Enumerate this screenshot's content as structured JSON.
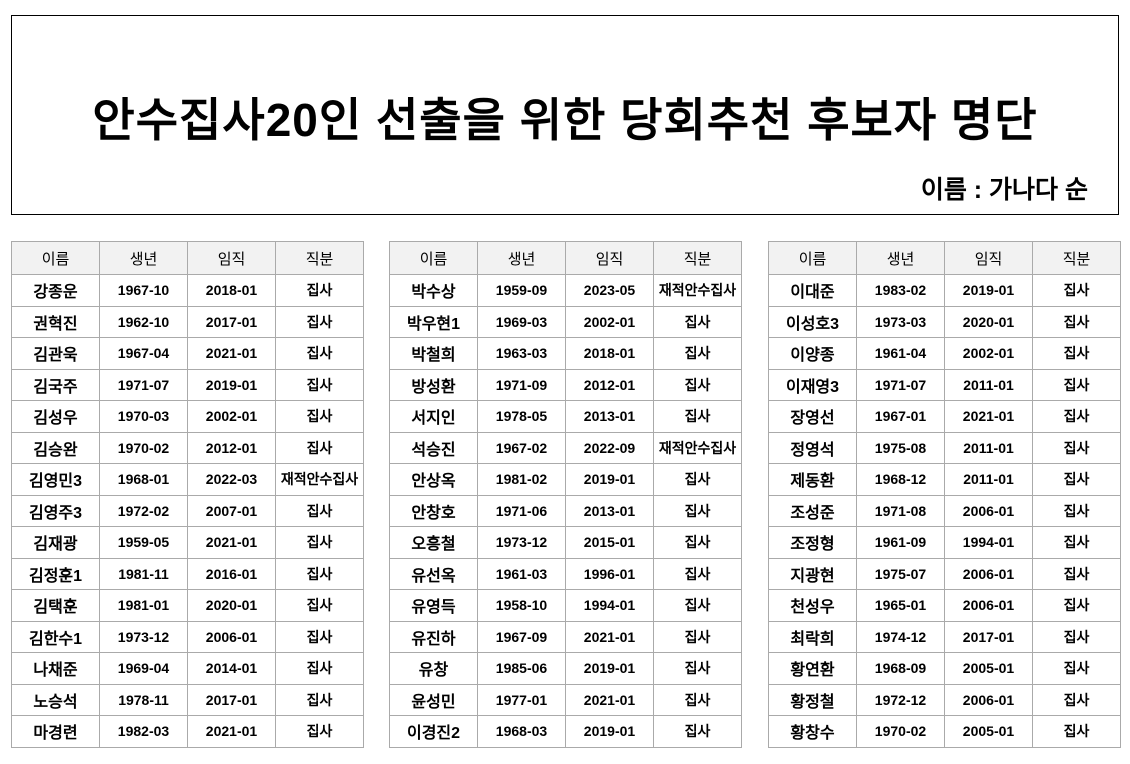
{
  "title": "안수집사20인 선출을 위한 당회추천 후보자 명단",
  "subtitle": "이름 : 가나다 순",
  "headers": [
    "이름",
    "생년",
    "임직",
    "직분"
  ],
  "tables": [
    [
      [
        "강종운",
        "1967-10",
        "2018-01",
        "집사"
      ],
      [
        "권혁진",
        "1962-10",
        "2017-01",
        "집사"
      ],
      [
        "김관욱",
        "1967-04",
        "2021-01",
        "집사"
      ],
      [
        "김국주",
        "1971-07",
        "2019-01",
        "집사"
      ],
      [
        "김성우",
        "1970-03",
        "2002-01",
        "집사"
      ],
      [
        "김승완",
        "1970-02",
        "2012-01",
        "집사"
      ],
      [
        "김영민3",
        "1968-01",
        "2022-03",
        "재적안수집사"
      ],
      [
        "김영주3",
        "1972-02",
        "2007-01",
        "집사"
      ],
      [
        "김재광",
        "1959-05",
        "2021-01",
        "집사"
      ],
      [
        "김정훈1",
        "1981-11",
        "2016-01",
        "집사"
      ],
      [
        "김택훈",
        "1981-01",
        "2020-01",
        "집사"
      ],
      [
        "김한수1",
        "1973-12",
        "2006-01",
        "집사"
      ],
      [
        "나채준",
        "1969-04",
        "2014-01",
        "집사"
      ],
      [
        "노승석",
        "1978-11",
        "2017-01",
        "집사"
      ],
      [
        "마경련",
        "1982-03",
        "2021-01",
        "집사"
      ]
    ],
    [
      [
        "박수상",
        "1959-09",
        "2023-05",
        "재적안수집사"
      ],
      [
        "박우현1",
        "1969-03",
        "2002-01",
        "집사"
      ],
      [
        "박철희",
        "1963-03",
        "2018-01",
        "집사"
      ],
      [
        "방성환",
        "1971-09",
        "2012-01",
        "집사"
      ],
      [
        "서지인",
        "1978-05",
        "2013-01",
        "집사"
      ],
      [
        "석승진",
        "1967-02",
        "2022-09",
        "재적안수집사"
      ],
      [
        "안상옥",
        "1981-02",
        "2019-01",
        "집사"
      ],
      [
        "안창호",
        "1971-06",
        "2013-01",
        "집사"
      ],
      [
        "오흥철",
        "1973-12",
        "2015-01",
        "집사"
      ],
      [
        "유선옥",
        "1961-03",
        "1996-01",
        "집사"
      ],
      [
        "유영득",
        "1958-10",
        "1994-01",
        "집사"
      ],
      [
        "유진하",
        "1967-09",
        "2021-01",
        "집사"
      ],
      [
        "유창",
        "1985-06",
        "2019-01",
        "집사"
      ],
      [
        "윤성민",
        "1977-01",
        "2021-01",
        "집사"
      ],
      [
        "이경진2",
        "1968-03",
        "2019-01",
        "집사"
      ]
    ],
    [
      [
        "이대준",
        "1983-02",
        "2019-01",
        "집사"
      ],
      [
        "이성호3",
        "1973-03",
        "2020-01",
        "집사"
      ],
      [
        "이양종",
        "1961-04",
        "2002-01",
        "집사"
      ],
      [
        "이재영3",
        "1971-07",
        "2011-01",
        "집사"
      ],
      [
        "장영선",
        "1967-01",
        "2021-01",
        "집사"
      ],
      [
        "정영석",
        "1975-08",
        "2011-01",
        "집사"
      ],
      [
        "제동환",
        "1968-12",
        "2011-01",
        "집사"
      ],
      [
        "조성준",
        "1971-08",
        "2006-01",
        "집사"
      ],
      [
        "조정형",
        "1961-09",
        "1994-01",
        "집사"
      ],
      [
        "지광현",
        "1975-07",
        "2006-01",
        "집사"
      ],
      [
        "천성우",
        "1965-01",
        "2006-01",
        "집사"
      ],
      [
        "최락희",
        "1974-12",
        "2017-01",
        "집사"
      ],
      [
        "황연환",
        "1968-09",
        "2005-01",
        "집사"
      ],
      [
        "황정철",
        "1972-12",
        "2006-01",
        "집사"
      ],
      [
        "황창수",
        "1970-02",
        "2005-01",
        "집사"
      ]
    ]
  ]
}
